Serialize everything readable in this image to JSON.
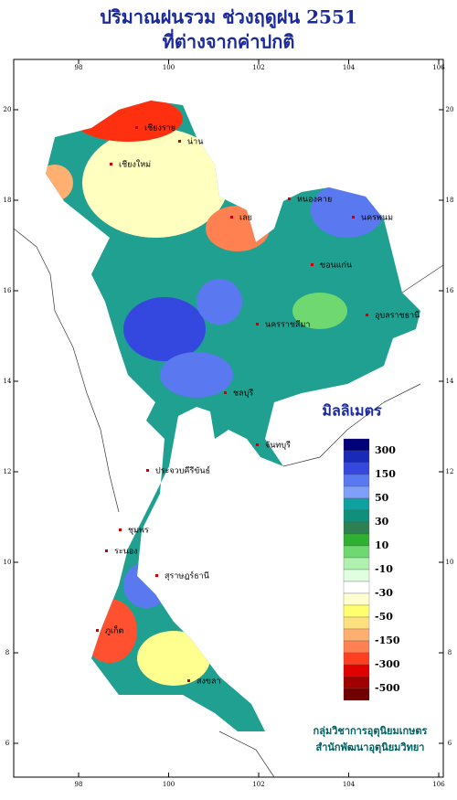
{
  "header": {
    "title": "ปริมาณฝนรวม ช่วงฤดูฝน 2551",
    "subtitle": "ที่ต่างจากค่าปกติ"
  },
  "map": {
    "lon_ticks": [
      98,
      100,
      102,
      104,
      106
    ],
    "lat_ticks": [
      20,
      18,
      16,
      14,
      12,
      10,
      8,
      6
    ],
    "places": [
      "เชียงราย",
      "เชียงใหม่",
      "น่าน",
      "เลย",
      "หนองคาย",
      "นครพนม",
      "ขอนแก่น",
      "นครราชสีมา",
      "อุบลราชธานี",
      "ชลบุรี",
      "จันทบุรี",
      "ประจวบคีรีขันธ์",
      "ชุมพร",
      "ระนอง",
      "สุราษฎร์ธานี",
      "ภูเก็ต",
      "สงขลา"
    ]
  },
  "legend": {
    "title": "มิลลิเมตร",
    "colors": [
      "#00007a",
      "#1a2ab8",
      "#3448e0",
      "#5a78f0",
      "#7ea0f8",
      "#10a0a0",
      "#10907a",
      "#2e8050",
      "#30b030",
      "#70d870",
      "#b0f0b0",
      "#e0ffe0",
      "#ffffff",
      "#ffffd0",
      "#ffff70",
      "#ffe080",
      "#ffb070",
      "#ff8050",
      "#ff4020",
      "#e00000",
      "#a00000",
      "#700000"
    ],
    "labels": [
      300,
      150,
      50,
      30,
      10,
      -10,
      -30,
      -50,
      -150,
      -300,
      -500
    ]
  },
  "credit": {
    "line1": "กลุ่มวิชาการอุตุนิยมเกษตร",
    "line2": "สำนักพัฒนาอุตุนิยมวิทยา"
  }
}
